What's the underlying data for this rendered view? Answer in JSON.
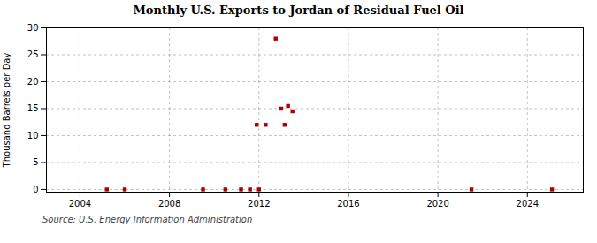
{
  "chart_data": {
    "type": "scatter",
    "title": "Monthly U.S. Exports to Jordan of Residual Fuel Oil",
    "ylabel": "Thousand Barrels per Day",
    "source": "Source: U.S. Energy Information Administration",
    "x": [
      2005.2,
      2006.0,
      2009.5,
      2010.5,
      2011.2,
      2011.6,
      2011.9,
      2012.0,
      2012.3,
      2012.75,
      2013.0,
      2013.15,
      2013.3,
      2013.5,
      2021.5,
      2025.1
    ],
    "values": [
      0.0,
      0.0,
      0.0,
      0.0,
      0.0,
      0.0,
      12.0,
      0.0,
      12.0,
      28.0,
      15.0,
      12.0,
      15.5,
      14.5,
      0.0,
      0.0
    ],
    "color": "#aa0000",
    "marker": "square",
    "xlim": [
      2002.5,
      2026.5
    ],
    "ylim": [
      -0.5,
      30
    ],
    "xticks": [
      2004,
      2008,
      2012,
      2016,
      2020,
      2024
    ],
    "yticks": [
      0,
      5,
      10,
      15,
      20,
      25,
      30
    ],
    "grid": true
  }
}
